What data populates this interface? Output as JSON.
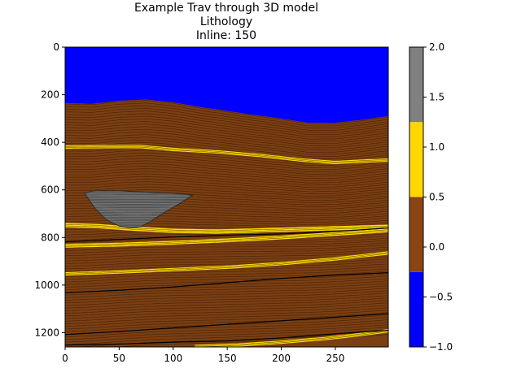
{
  "chart_data": {
    "type": "heatmap",
    "title_lines": [
      "Example Trav through 3D model",
      "Lithology",
      "Inline: 150"
    ],
    "xlabel": "",
    "ylabel": "",
    "xlim": [
      0,
      299
    ],
    "ylim": [
      1260,
      0
    ],
    "x_ticks": [
      0,
      50,
      100,
      150,
      200,
      250
    ],
    "y_ticks": [
      0,
      200,
      400,
      600,
      800,
      1000,
      1200
    ],
    "grid": false,
    "colorbar": {
      "range": [
        -1.0,
        2.0
      ],
      "ticks": [
        "2.0",
        "1.5",
        "1.0",
        "0.5",
        "0.0",
        "−0.5",
        "−1.0"
      ],
      "tick_values": [
        2.0,
        1.5,
        1.0,
        0.5,
        0.0,
        -0.5,
        -1.0
      ],
      "bands": [
        {
          "from": -1.0,
          "to": -0.25,
          "color": "#0000ff"
        },
        {
          "from": -0.25,
          "to": 0.5,
          "color": "#8b4513"
        },
        {
          "from": 0.5,
          "to": 1.25,
          "color": "#ffd700"
        },
        {
          "from": 1.25,
          "to": 2.0,
          "color": "#808080"
        }
      ]
    },
    "colors": {
      "water": "#0000ff",
      "shale": "#7a3f12",
      "sand": "#ffe000",
      "salt": "#808080",
      "layer_line": "#3a1a05"
    },
    "water_bottom": {
      "x": [
        0,
        25,
        50,
        75,
        100,
        125,
        150,
        175,
        200,
        225,
        250,
        275,
        299
      ],
      "depth": [
        235,
        238,
        225,
        220,
        232,
        252,
        268,
        285,
        300,
        318,
        318,
        305,
        290
      ]
    },
    "sand_layers": [
      {
        "x": [
          0,
          40,
          70,
          100,
          140,
          180,
          220,
          250,
          280,
          299
        ],
        "depth": [
          420,
          418,
          418,
          430,
          440,
          455,
          475,
          485,
          478,
          475
        ],
        "thickness": 14
      },
      {
        "x": [
          0,
          30,
          60,
          100,
          140,
          180,
          220,
          260,
          299
        ],
        "depth": [
          748,
          752,
          762,
          772,
          775,
          770,
          765,
          760,
          755
        ],
        "thickness": 18
      },
      {
        "x": [
          0,
          50,
          100,
          150,
          200,
          250,
          299
        ],
        "depth": [
          835,
          830,
          822,
          812,
          800,
          785,
          770
        ],
        "thickness": 16
      },
      {
        "x": [
          0,
          50,
          100,
          150,
          200,
          250,
          299
        ],
        "depth": [
          953,
          945,
          935,
          925,
          910,
          890,
          865
        ],
        "thickness": 14
      },
      {
        "x": [
          120,
          160,
          200,
          240,
          270,
          299
        ],
        "depth": [
          1258,
          1252,
          1240,
          1225,
          1210,
          1192
        ],
        "thickness": 14
      }
    ],
    "dark_horizons": [
      {
        "x": [
          0,
          50,
          100,
          150,
          200,
          250,
          299
        ],
        "depth": [
          818,
          808,
          798,
          790,
          785,
          775,
          760
        ]
      },
      {
        "x": [
          0,
          50,
          100,
          150,
          200,
          250,
          299
        ],
        "depth": [
          1032,
          1022,
          1008,
          990,
          972,
          958,
          948
        ]
      },
      {
        "x": [
          0,
          50,
          100,
          150,
          200,
          250,
          299
        ],
        "depth": [
          1208,
          1195,
          1180,
          1165,
          1150,
          1135,
          1120
        ]
      },
      {
        "x": [
          0,
          50,
          100,
          150,
          200,
          250,
          299
        ],
        "depth": [
          1252,
          1248,
          1240,
          1235,
          1222,
          1205,
          1190
        ]
      }
    ],
    "salt_body": {
      "x": [
        18,
        25,
        40,
        55,
        70,
        85,
        100,
        110,
        118,
        105,
        90,
        80,
        70,
        60,
        50,
        38,
        28
      ],
      "depth": [
        615,
        605,
        602,
        605,
        608,
        612,
        615,
        618,
        622,
        660,
        700,
        730,
        755,
        760,
        752,
        725,
        680
      ]
    }
  }
}
